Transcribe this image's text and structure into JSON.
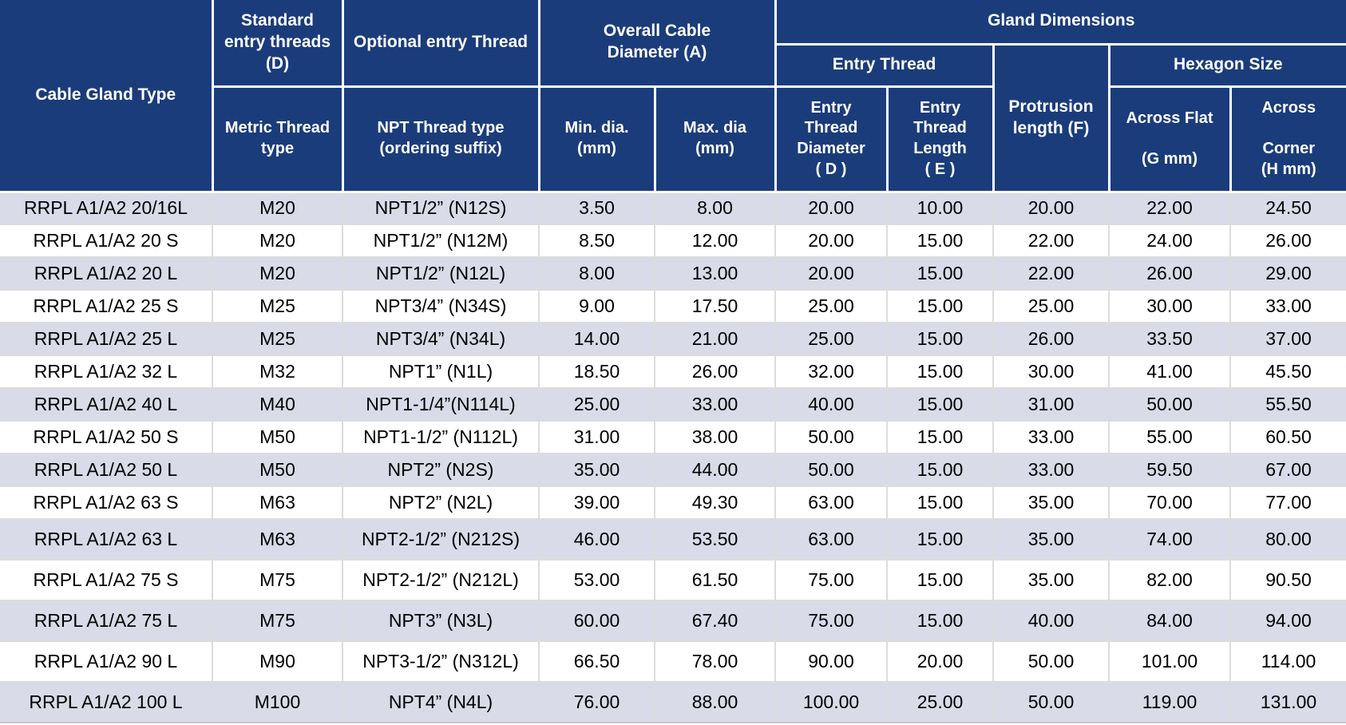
{
  "colors": {
    "header_bg": "#1b3c7a",
    "header_text": "#ffffff",
    "row_alt_bg": "#d9dbe8",
    "row_bg": "#ffffff",
    "body_text": "#000000",
    "grid_line": "#dcdcdc"
  },
  "table": {
    "header": {
      "cable_gland_type": "Cable Gland Type",
      "standard_entry_threads": "Standard\nentry threads\n(D)",
      "optional_entry_thread": "Optional entry Thread",
      "overall_cable_diameter": "Overall Cable\nDiameter (A)",
      "gland_dimensions": "Gland Dimensions",
      "entry_thread": "Entry Thread",
      "hexagon_size": "Hexagon Size",
      "metric_thread_type": "Metric Thread\ntype",
      "npt_thread_type": "NPT Thread type\n(ordering suffix)",
      "min_dia": "Min. dia.\n(mm)",
      "max_dia": "Max. dia\n(mm)",
      "entry_thread_diameter": "Entry\nThread\nDiameter\n( D )",
      "entry_thread_length": "Entry\nThread\nLength\n( E )",
      "protrusion_length": "Protrusion\nlength (F)",
      "across_flat": "Across Flat\n\n(G mm)",
      "across_corner": "Across\n\nCorner\n(H mm)"
    },
    "rows": [
      [
        "RRPL A1/A2 20/16L",
        "M20",
        "NPT1/2” (N12S)",
        "3.50",
        "8.00",
        "20.00",
        "10.00",
        "20.00",
        "22.00",
        "24.50"
      ],
      [
        "RRPL A1/A2 20 S",
        "M20",
        "NPT1/2” (N12M)",
        "8.50",
        "12.00",
        "20.00",
        "15.00",
        "22.00",
        "24.00",
        "26.00"
      ],
      [
        "RRPL A1/A2 20 L",
        "M20",
        "NPT1/2” (N12L)",
        "8.00",
        "13.00",
        "20.00",
        "15.00",
        "22.00",
        "26.00",
        "29.00"
      ],
      [
        "RRPL A1/A2 25 S",
        "M25",
        "NPT3/4” (N34S)",
        "9.00",
        "17.50",
        "25.00",
        "15.00",
        "25.00",
        "30.00",
        "33.00"
      ],
      [
        "RRPL A1/A2 25 L",
        "M25",
        "NPT3/4” (N34L)",
        "14.00",
        "21.00",
        "25.00",
        "15.00",
        "26.00",
        "33.50",
        "37.00"
      ],
      [
        "RRPL A1/A2 32 L",
        "M32",
        "NPT1” (N1L)",
        "18.50",
        "26.00",
        "32.00",
        "15.00",
        "30.00",
        "41.00",
        "45.50"
      ],
      [
        "RRPL A1/A2 40 L",
        "M40",
        "NPT1-1/4”(N114L)",
        "25.00",
        "33.00",
        "40.00",
        "15.00",
        "31.00",
        "50.00",
        "55.50"
      ],
      [
        "RRPL A1/A2 50 S",
        "M50",
        "NPT1-1/2” (N112L)",
        "31.00",
        "38.00",
        "50.00",
        "15.00",
        "33.00",
        "55.00",
        "60.50"
      ],
      [
        "RRPL A1/A2 50 L",
        "M50",
        "NPT2” (N2S)",
        "35.00",
        "44.00",
        "50.00",
        "15.00",
        "33.00",
        "59.50",
        "67.00"
      ],
      [
        "RRPL A1/A2 63 S",
        "M63",
        "NPT2” (N2L)",
        "39.00",
        "49.30",
        "63.00",
        "15.00",
        "35.00",
        "70.00",
        "77.00"
      ],
      [
        "RRPL A1/A2 63 L",
        "M63",
        "NPT2-1/2” (N212S)",
        "46.00",
        "53.50",
        "63.00",
        "15.00",
        "35.00",
        "74.00",
        "80.00"
      ],
      [
        "RRPL A1/A2 75 S",
        "M75",
        "NPT2-1/2” (N212L)",
        "53.00",
        "61.50",
        "75.00",
        "15.00",
        "35.00",
        "82.00",
        "90.50"
      ],
      [
        "RRPL A1/A2 75 L",
        "M75",
        "NPT3” (N3L)",
        "60.00",
        "67.40",
        "75.00",
        "15.00",
        "40.00",
        "84.00",
        "94.00"
      ],
      [
        "RRPL A1/A2 90 L",
        "M90",
        "NPT3-1/2” (N312L)",
        "66.50",
        "78.00",
        "90.00",
        "20.00",
        "50.00",
        "101.00",
        "114.00"
      ],
      [
        "RRPL A1/A2 100 L",
        "M100",
        "NPT4” (N4L)",
        "76.00",
        "88.00",
        "100.00",
        "25.00",
        "50.00",
        "119.00",
        "131.00"
      ]
    ]
  }
}
